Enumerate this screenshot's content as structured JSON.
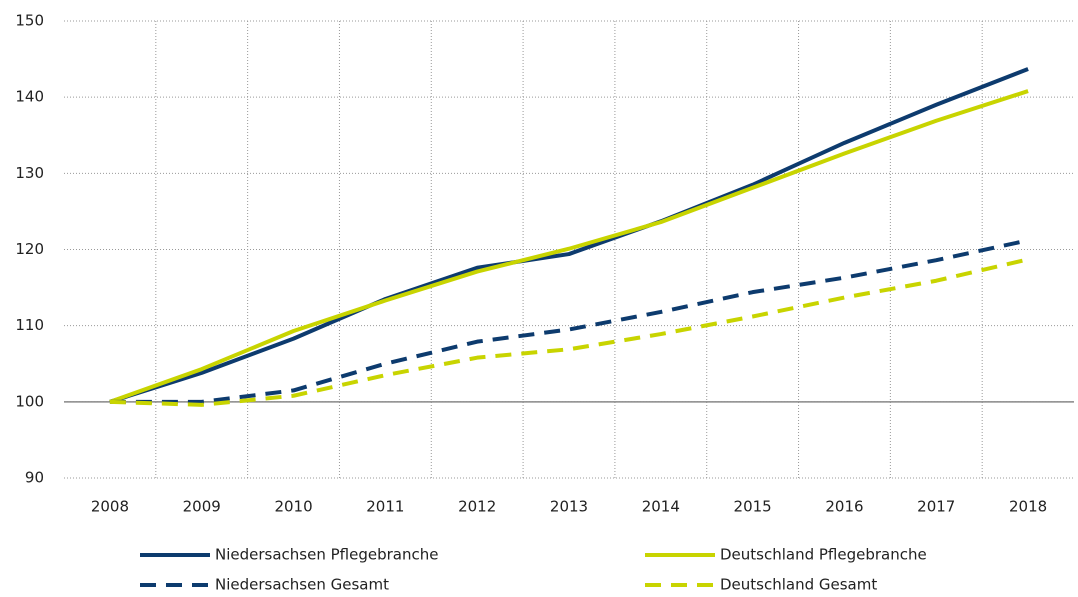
{
  "chart_data": {
    "type": "line",
    "categories": [
      "2008",
      "2009",
      "2010",
      "2011",
      "2012",
      "2013",
      "2014",
      "2015",
      "2016",
      "2017",
      "2018"
    ],
    "series": [
      {
        "name": "Niedersachsen Pflegebranche",
        "color": "#0d3b6e",
        "dashed": false,
        "values": [
          100,
          103.8,
          108.3,
          113.5,
          117.6,
          119.4,
          123.7,
          128.5,
          134,
          139,
          143.7
        ]
      },
      {
        "name": "Deutschland Pflegebranche",
        "color": "#c8d400",
        "dashed": false,
        "values": [
          100,
          104.3,
          109.3,
          113.3,
          117.1,
          120.1,
          123.6,
          128.1,
          132.6,
          136.9,
          140.8
        ]
      },
      {
        "name": "Niedersachsen Gesamt",
        "color": "#0d3b6e",
        "dashed": true,
        "values": [
          100,
          100,
          101.5,
          105,
          107.9,
          109.5,
          111.8,
          114.4,
          116.3,
          118.6,
          121.2
        ]
      },
      {
        "name": "Deutschland Gesamt",
        "color": "#c8d400",
        "dashed": true,
        "values": [
          100,
          99.6,
          100.8,
          103.5,
          105.8,
          106.9,
          108.9,
          111.2,
          113.7,
          115.9,
          118.7
        ]
      }
    ],
    "ylim": [
      90,
      150
    ],
    "yticks": [
      90,
      100,
      110,
      120,
      130,
      140,
      150
    ],
    "reference_line": 100,
    "grid": true,
    "legend": "bottom"
  }
}
